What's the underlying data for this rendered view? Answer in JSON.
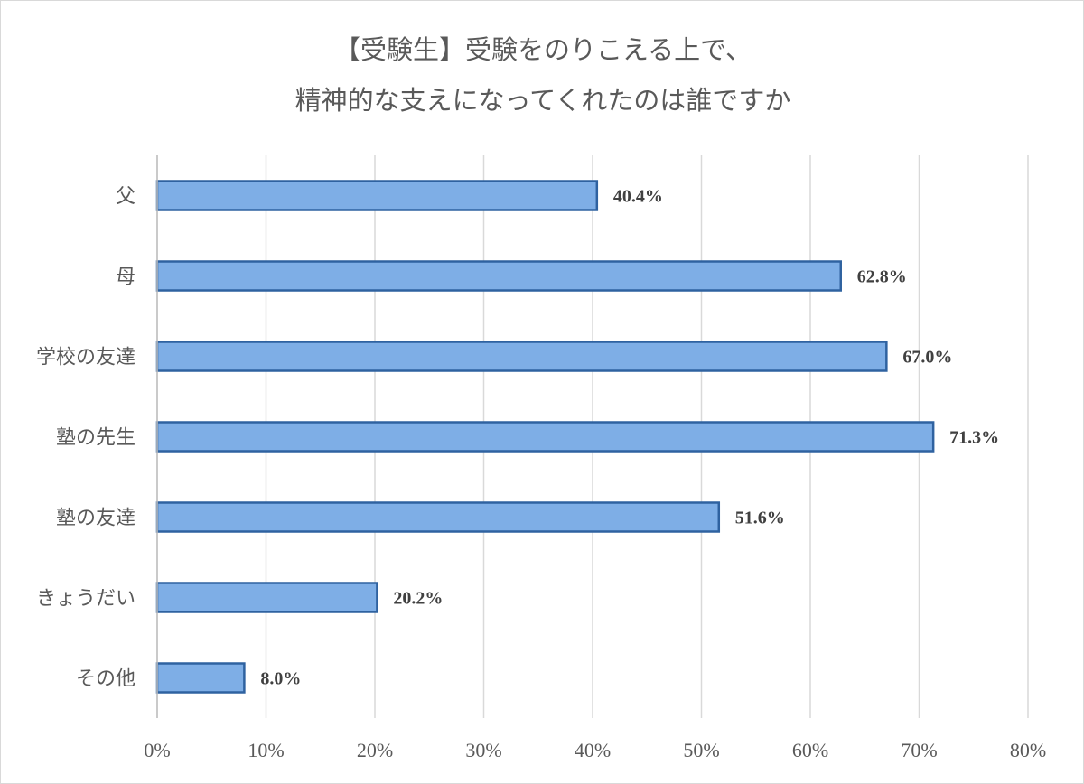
{
  "chart_data": {
    "type": "bar",
    "orientation": "horizontal",
    "title_lines": [
      "【受験生】受験をのりこえる上で、",
      "精神的な支えになってくれたのは誰ですか"
    ],
    "categories": [
      "父",
      "母",
      "学校の友達",
      "塾の先生",
      "塾の友達",
      "きょうだい",
      "その他"
    ],
    "values": [
      40.4,
      62.8,
      67.0,
      71.3,
      51.6,
      20.2,
      8.0
    ],
    "data_labels": [
      "40.4%",
      "62.8%",
      "67.0%",
      "71.3%",
      "51.6%",
      "20.2%",
      "8.0%"
    ],
    "xlim": [
      0,
      80
    ],
    "xticks": [
      0,
      10,
      20,
      30,
      40,
      50,
      60,
      70,
      80
    ],
    "xtick_labels": [
      "0%",
      "10%",
      "20%",
      "30%",
      "40%",
      "50%",
      "60%",
      "70%",
      "80%"
    ],
    "grid": true,
    "legend": "none",
    "bar_fill": "#7eaee6",
    "bar_stroke": "#2f62a0",
    "grid_color": "#d9d9d9"
  }
}
